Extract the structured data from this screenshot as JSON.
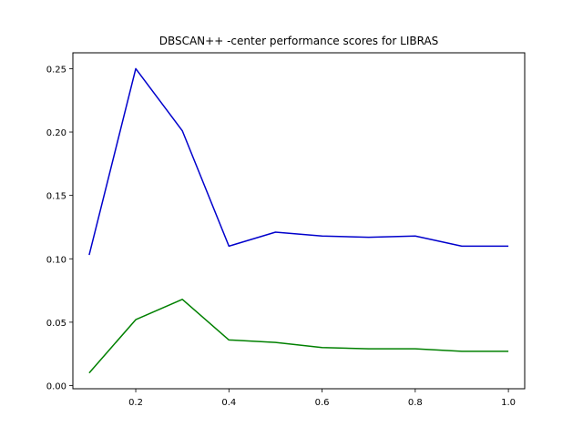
{
  "chart_data": {
    "type": "line",
    "title": "DBSCAN++ -center performance scores for LIBRAS",
    "xlabel": "",
    "ylabel": "",
    "xlim": [
      0.065,
      1.035
    ],
    "ylim": [
      -0.0025,
      0.2625
    ],
    "x_ticks": [
      "0.2",
      "0.4",
      "0.6",
      "0.8",
      "1.0"
    ],
    "x_tick_values": [
      0.2,
      0.4,
      0.6,
      0.8,
      1.0
    ],
    "y_ticks": [
      "0.00",
      "0.05",
      "0.10",
      "0.15",
      "0.20",
      "0.25"
    ],
    "y_tick_values": [
      0.0,
      0.05,
      0.1,
      0.15,
      0.2,
      0.25
    ],
    "grid": false,
    "x": [
      0.1,
      0.2,
      0.3,
      0.4,
      0.5,
      0.6,
      0.7,
      0.8,
      0.9,
      1.0
    ],
    "series": [
      {
        "color": "#0000cc",
        "values": [
          0.103,
          0.25,
          0.201,
          0.11,
          0.121,
          0.118,
          0.117,
          0.118,
          0.11,
          0.11
        ]
      },
      {
        "color": "#008000",
        "values": [
          0.01,
          0.052,
          0.068,
          0.036,
          0.034,
          0.03,
          0.029,
          0.029,
          0.027,
          0.027
        ]
      }
    ]
  }
}
